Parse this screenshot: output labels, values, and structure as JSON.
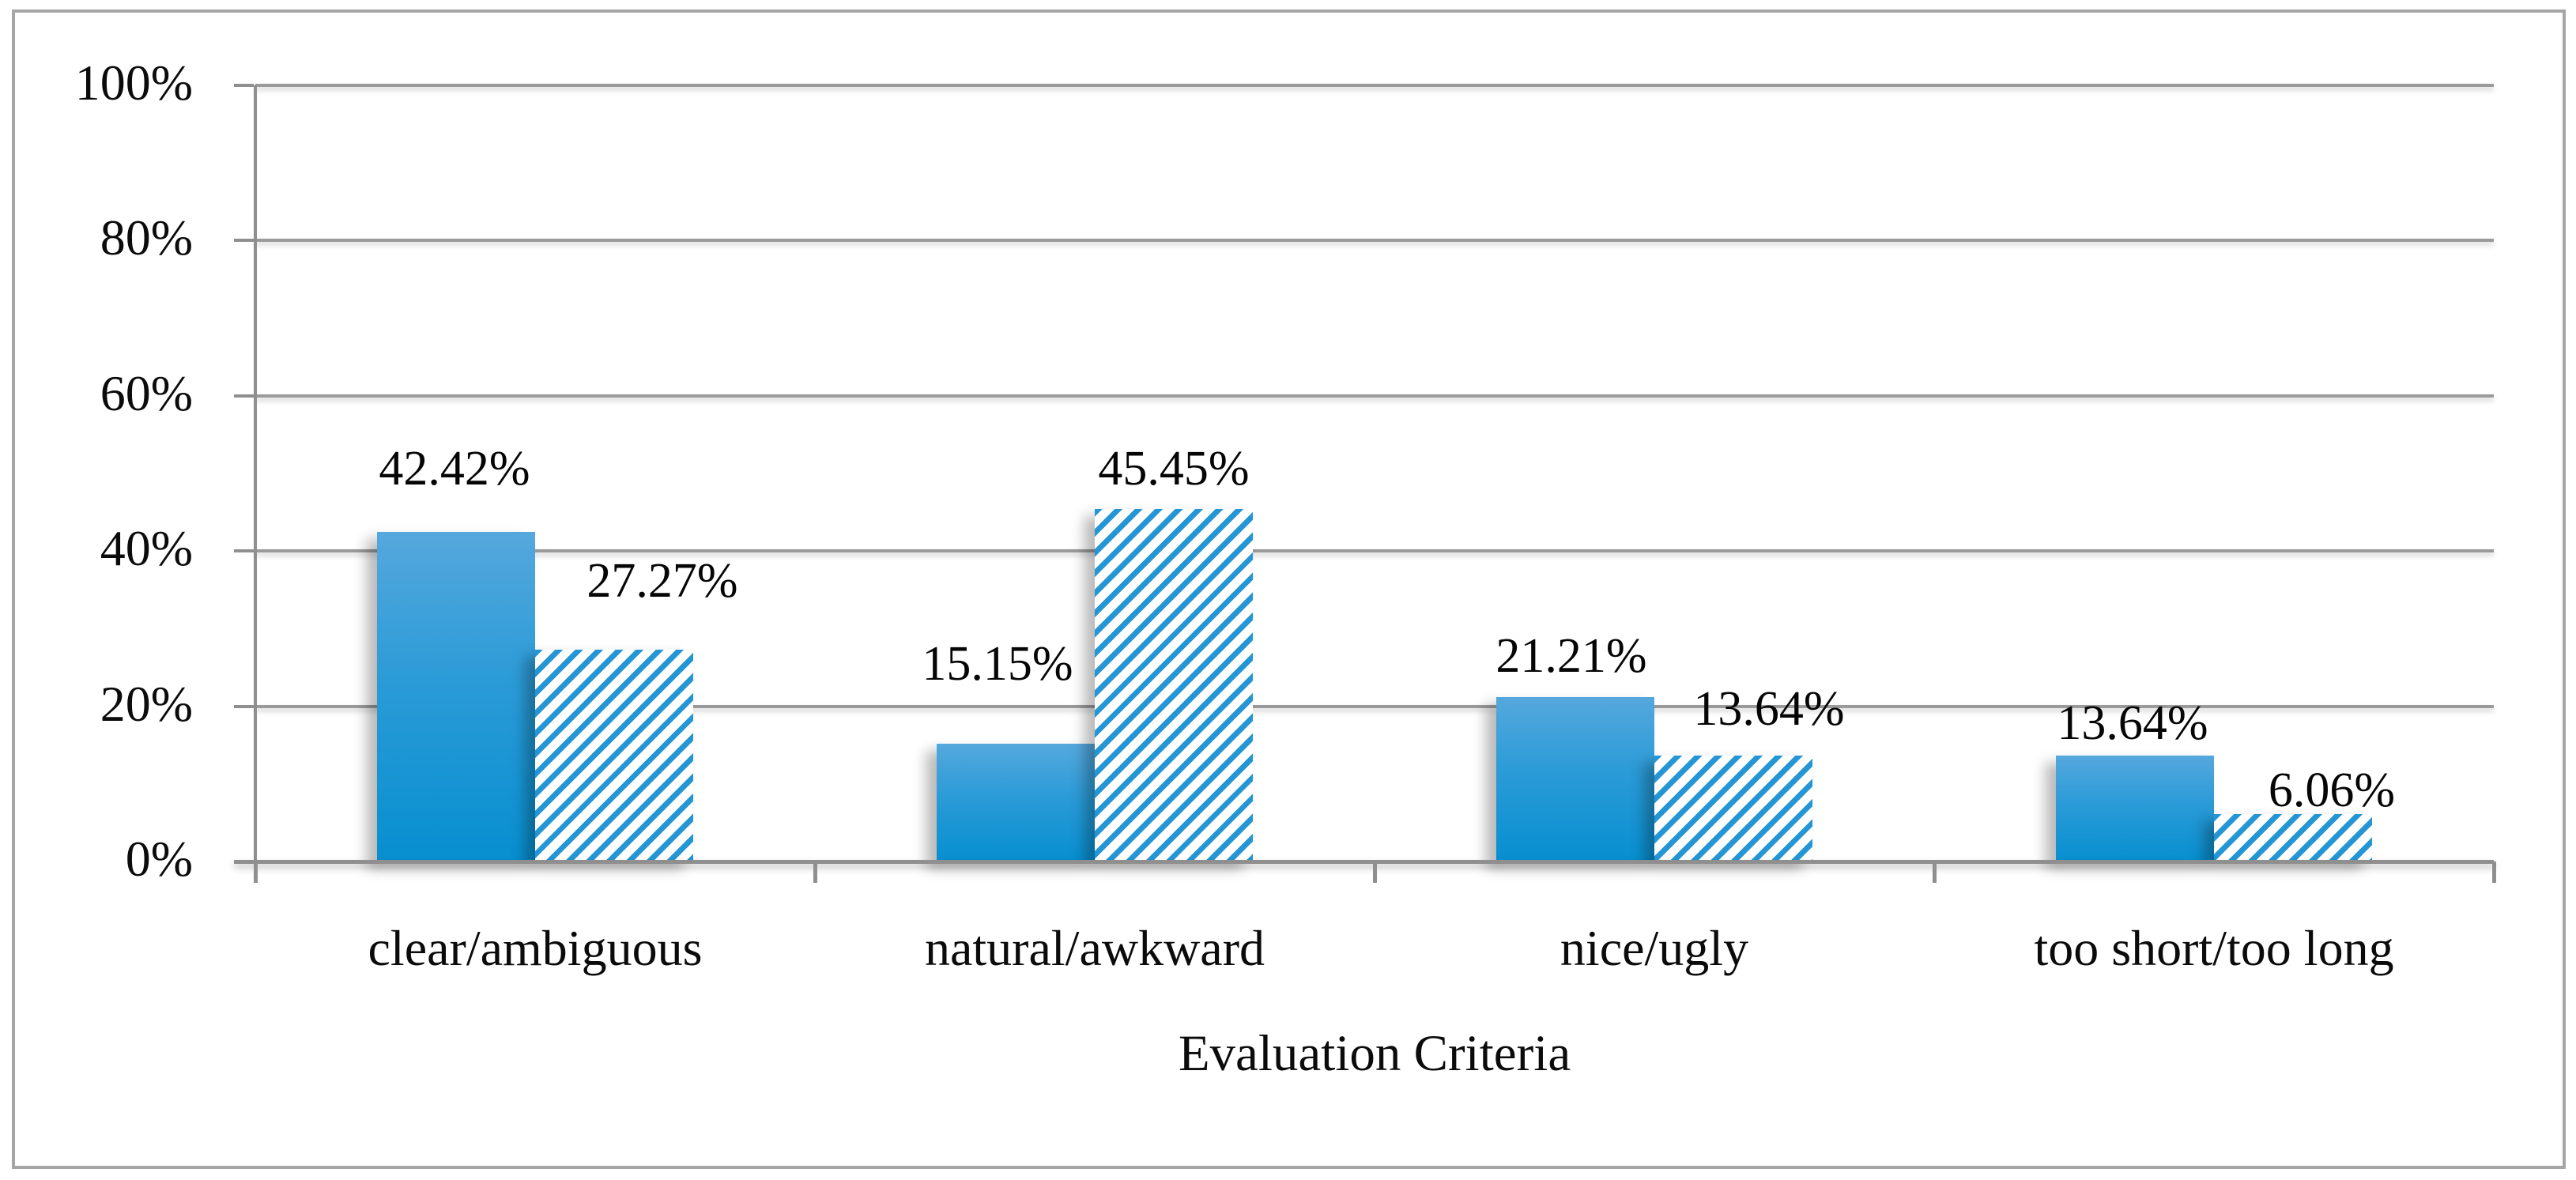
{
  "figure": {
    "x_axis_title": "Evaluation Criteria"
  },
  "chart_data": {
    "type": "bar",
    "title": "",
    "xlabel": "Evaluation Criteria",
    "ylabel": "",
    "ylim": [
      0,
      100
    ],
    "y_tick_interval": 20,
    "y_tick_labels": [
      "0%",
      "20%",
      "40%",
      "60%",
      "80%",
      "100%"
    ],
    "categories": [
      "clear/ambiguous",
      "natural/awkward",
      "nice/ugly",
      "too short/too long"
    ],
    "series": [
      {
        "style": "solid-blue-gradient",
        "values": [
          42.42,
          15.15,
          21.21,
          13.64
        ],
        "labels": [
          "42.42%",
          "15.15%",
          "21.21%",
          "13.64%"
        ]
      },
      {
        "style": "blue-white-diagonal-hatch",
        "values": [
          27.27,
          45.45,
          13.64,
          6.06
        ],
        "labels": [
          "27.27%",
          "45.45%",
          "13.64%",
          "6.06%"
        ]
      }
    ],
    "grid": true,
    "legend_position": "none",
    "colors": {
      "solid_bar_top": "#55a8dd",
      "solid_bar_bottom": "#078fd0",
      "hatch_stripe": "#2496d5",
      "hatch_background": "#ffffff",
      "gridline": "#9a9a9a",
      "axis": "#8f8f8f",
      "text": "#0b0b0b",
      "figure_border": "#a6a6a6"
    }
  }
}
